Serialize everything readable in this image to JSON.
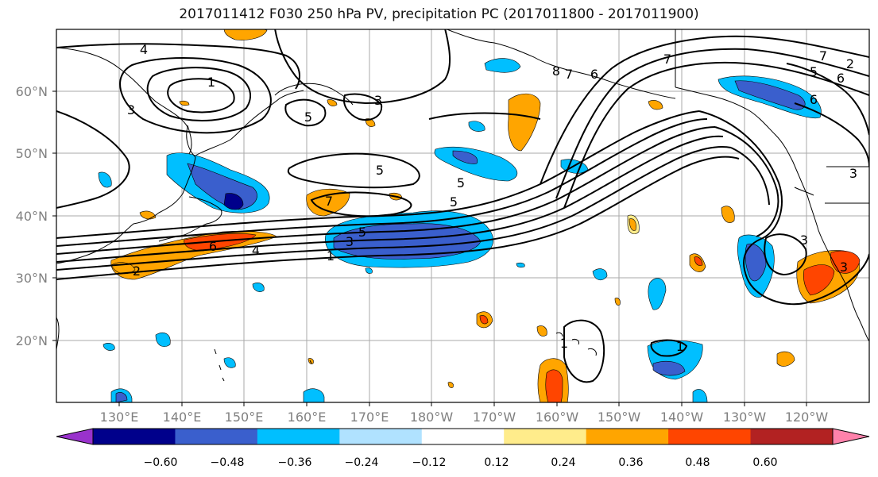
{
  "title": "2017011412 F030 250 hPa PV, precipitation PC (2017011800 - 2017011900)",
  "lat_labels": [
    "60°N",
    "50°N",
    "40°N",
    "30°N",
    "20°N"
  ],
  "lon_labels": [
    "130°E",
    "140°E",
    "150°E",
    "160°E",
    "170°E",
    "180°W",
    "170°W",
    "160°W",
    "150°W",
    "140°W",
    "130°W",
    "120°W"
  ],
  "contour_labels": [
    "4",
    "1",
    "3",
    "5",
    "5",
    "6",
    "7",
    "6",
    "8",
    "7",
    "6",
    "5",
    "7",
    "5",
    "3",
    "5",
    "1",
    "4",
    "6",
    "2",
    "2",
    "3",
    "7",
    "3",
    "5",
    "1",
    "1",
    "3",
    "3"
  ],
  "colorbar": {
    "colors": [
      "#9932cc",
      "#00008b",
      "#3a5fcd",
      "#00bfff",
      "#b0e2ff",
      "#ffffff",
      "#ffec8b",
      "#ffa500",
      "#ff4500",
      "#b22222",
      "#ff82ab"
    ],
    "tick_labels": [
      "−0.60",
      "−0.48",
      "−0.36",
      "−0.24",
      "−0.12",
      "0.12",
      "0.24",
      "0.36",
      "0.48",
      "0.60"
    ]
  },
  "colors": {
    "grid": "#aaaaaa",
    "coast": "#000000",
    "contour": "#000000",
    "tick_label": "#808080"
  }
}
